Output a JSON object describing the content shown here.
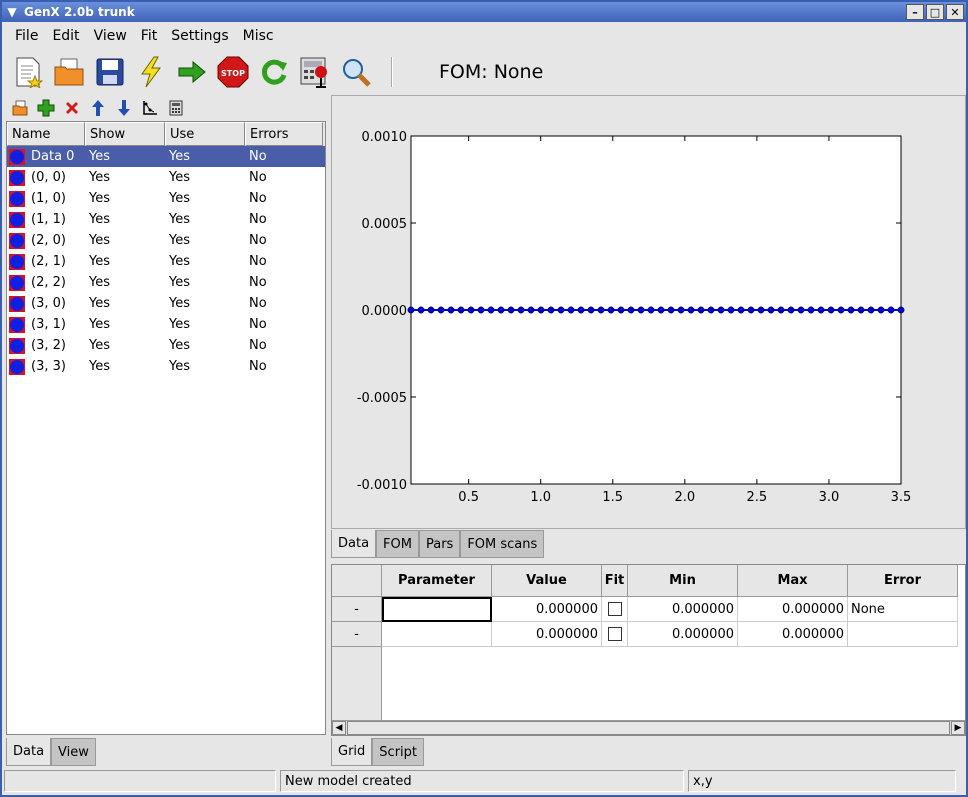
{
  "window": {
    "title": "GenX 2.0b trunk"
  },
  "menu": [
    "File",
    "Edit",
    "View",
    "Fit",
    "Settings",
    "Misc"
  ],
  "toolbar": {
    "fom_label": "FOM: None"
  },
  "datalist": {
    "headers": [
      "Name",
      "Show",
      "Use",
      "Errors"
    ],
    "rows": [
      {
        "name": "Data 0",
        "show": "Yes",
        "use": "Yes",
        "errors": "No"
      },
      {
        "name": "(0, 0)",
        "show": "Yes",
        "use": "Yes",
        "errors": "No"
      },
      {
        "name": "(1, 0)",
        "show": "Yes",
        "use": "Yes",
        "errors": "No"
      },
      {
        "name": "(1, 1)",
        "show": "Yes",
        "use": "Yes",
        "errors": "No"
      },
      {
        "name": "(2, 0)",
        "show": "Yes",
        "use": "Yes",
        "errors": "No"
      },
      {
        "name": "(2, 1)",
        "show": "Yes",
        "use": "Yes",
        "errors": "No"
      },
      {
        "name": "(2, 2)",
        "show": "Yes",
        "use": "Yes",
        "errors": "No"
      },
      {
        "name": "(3, 0)",
        "show": "Yes",
        "use": "Yes",
        "errors": "No"
      },
      {
        "name": "(3, 1)",
        "show": "Yes",
        "use": "Yes",
        "errors": "No"
      },
      {
        "name": "(3, 2)",
        "show": "Yes",
        "use": "Yes",
        "errors": "No"
      },
      {
        "name": "(3, 3)",
        "show": "Yes",
        "use": "Yes",
        "errors": "No"
      }
    ]
  },
  "left_tabs": [
    "Data",
    "View"
  ],
  "plot_tabs": [
    "Data",
    "FOM",
    "Pars",
    "FOM scans"
  ],
  "chart_data": {
    "type": "scatter",
    "xlim": [
      0.1,
      3.5
    ],
    "ylim": [
      -0.001,
      0.001
    ],
    "xticks": [
      "0.5",
      "1.0",
      "1.5",
      "2.0",
      "2.5",
      "3.0",
      "3.5"
    ],
    "yticks": [
      "0.0010",
      "0.0005",
      "0.0000",
      "-0.0005",
      "-0.0010"
    ],
    "series": [
      {
        "x_start": 0.1,
        "x_end": 3.5,
        "count": 50,
        "y": 0.0
      }
    ],
    "marker_color": "#0000cc",
    "line_color": "#0000ff"
  },
  "grid": {
    "headers": [
      "Parameter",
      "Value",
      "Fit",
      "Min",
      "Max",
      "Error"
    ],
    "rows": [
      {
        "label": "-",
        "parameter": "",
        "value": "0.000000",
        "min": "0.000000",
        "max": "0.000000",
        "error": "None"
      },
      {
        "label": "-",
        "parameter": "",
        "value": "0.000000",
        "min": "0.000000",
        "max": "0.000000",
        "error": ""
      }
    ]
  },
  "grid_tabs": [
    "Grid",
    "Script"
  ],
  "status": {
    "left": "",
    "message": "New model created",
    "coords": "x,y"
  }
}
